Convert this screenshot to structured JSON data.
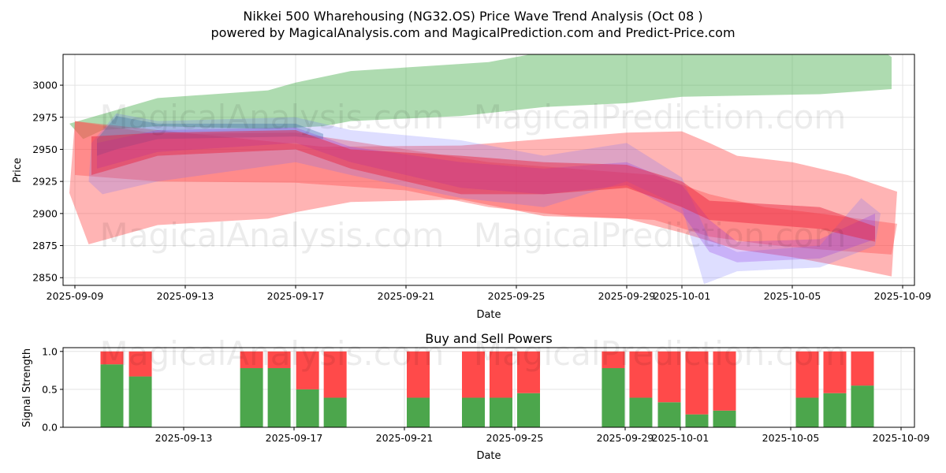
{
  "title_line1": "Nikkei 500 Wharehousing (NG32.OS) Price Wave Trend Analysis (Oct 08 )",
  "title_line2": "powered by MagicalAnalysis.com and MagicalPrediction.com and Predict-Price.com",
  "watermarks": [
    "MagicalAnalysis.com",
    "MagicalPrediction.com"
  ],
  "chart_data": [
    {
      "type": "area",
      "title": "",
      "xlabel": "Date",
      "ylabel": "Price",
      "x_origin_date": "2025-09-09",
      "x_unit": "days since 2025-09-09",
      "xlim": [
        -0.5,
        30.4
      ],
      "ylim": [
        2844,
        3024
      ],
      "x_ticks": [
        "2025-09-09",
        "2025-09-13",
        "2025-09-17",
        "2025-09-21",
        "2025-09-25",
        "2025-09-29",
        "2025-10-01",
        "2025-10-05",
        "2025-10-09"
      ],
      "x_tick_days": [
        0,
        4,
        8,
        12,
        16,
        20,
        22,
        26,
        30
      ],
      "y_ticks": [
        2850,
        2875,
        2900,
        2925,
        2950,
        2975,
        3000
      ],
      "grid": true,
      "bands": [
        {
          "name": "green-band",
          "color": "#4caf50",
          "opacity": 0.45,
          "upper": [
            [
              -0.2,
              2970
            ],
            [
              3,
              2990
            ],
            [
              7,
              2996
            ],
            [
              8,
              3002
            ],
            [
              10,
              3011
            ],
            [
              15,
              3018
            ],
            [
              17,
              3026
            ],
            [
              22,
              3030
            ],
            [
              29,
              3030
            ],
            [
              29.6,
              3022
            ]
          ],
          "lower": [
            [
              -0.2,
              2970
            ],
            [
              0.3,
              2958
            ],
            [
              1,
              2965
            ],
            [
              3,
              2968
            ],
            [
              7,
              2966
            ],
            [
              9,
              2968
            ],
            [
              10,
              2972
            ],
            [
              14,
              2976
            ],
            [
              17,
              2983
            ],
            [
              20,
              2986
            ],
            [
              22,
              2991
            ],
            [
              27,
              2993
            ],
            [
              29.6,
              2997
            ]
          ]
        },
        {
          "name": "red-wide-band",
          "color": "#ff4d4d",
          "opacity": 0.42,
          "upper": [
            [
              0,
              2972
            ],
            [
              3,
              2965
            ],
            [
              9,
              2952
            ],
            [
              14,
              2953
            ],
            [
              17,
              2958
            ],
            [
              20,
              2963
            ],
            [
              22,
              2964
            ],
            [
              23,
              2955
            ],
            [
              24,
              2945
            ],
            [
              26,
              2940
            ],
            [
              28,
              2930
            ],
            [
              29.8,
              2917
            ]
          ],
          "lower": [
            [
              -0.2,
              2916
            ],
            [
              0.5,
              2876
            ],
            [
              3,
              2891
            ],
            [
              7,
              2896
            ],
            [
              8,
              2901
            ],
            [
              10,
              2909
            ],
            [
              14,
              2911
            ],
            [
              17,
              2898
            ],
            [
              20,
              2896
            ],
            [
              22,
              2885
            ],
            [
              24,
              2872
            ],
            [
              26,
              2866
            ],
            [
              28,
              2858
            ],
            [
              29.6,
              2851
            ]
          ]
        },
        {
          "name": "red-band-2",
          "color": "#ff4d4d",
          "opacity": 0.4,
          "upper": [
            [
              0,
              2972
            ],
            [
              3,
              2962
            ],
            [
              8,
              2963
            ],
            [
              12,
              2950
            ],
            [
              15,
              2940
            ],
            [
              18,
              2935
            ],
            [
              21,
              2930
            ],
            [
              23,
              2915
            ],
            [
              25,
              2905
            ],
            [
              27,
              2900
            ],
            [
              29.8,
              2892
            ]
          ],
          "lower": [
            [
              0,
              2930
            ],
            [
              3,
              2925
            ],
            [
              8,
              2924
            ],
            [
              12,
              2918
            ],
            [
              15,
              2905
            ],
            [
              18,
              2898
            ],
            [
              21,
              2895
            ],
            [
              23,
              2882
            ],
            [
              25,
              2876
            ],
            [
              27,
              2872
            ],
            [
              29.6,
              2868
            ]
          ]
        },
        {
          "name": "blue-band",
          "color": "#6b6bff",
          "opacity": 0.22,
          "upper": [
            [
              0.6,
              2955
            ],
            [
              1.5,
              2978
            ],
            [
              3,
              2972
            ],
            [
              8,
              2975
            ],
            [
              10,
              2965
            ],
            [
              14,
              2957
            ],
            [
              17,
              2945
            ],
            [
              20,
              2955
            ],
            [
              22,
              2928
            ],
            [
              23,
              2880
            ],
            [
              24,
              2870
            ],
            [
              27,
              2875
            ],
            [
              28.5,
              2912
            ],
            [
              29.2,
              2900
            ]
          ],
          "lower": [
            [
              0.5,
              2925
            ],
            [
              1,
              2915
            ],
            [
              3,
              2925
            ],
            [
              8,
              2940
            ],
            [
              10,
              2930
            ],
            [
              14,
              2912
            ],
            [
              17,
              2905
            ],
            [
              20,
              2925
            ],
            [
              22,
              2905
            ],
            [
              22.8,
              2845
            ],
            [
              24,
              2855
            ],
            [
              27,
              2858
            ],
            [
              29,
              2875
            ]
          ]
        },
        {
          "name": "steel-blue-band",
          "color": "#3a6ea5",
          "opacity": 0.35,
          "upper": [
            [
              0.8,
              2958
            ],
            [
              1.5,
              2976
            ],
            [
              3,
              2970
            ],
            [
              8,
              2970
            ],
            [
              9,
              2962
            ]
          ],
          "lower": [
            [
              0.8,
              2945
            ],
            [
              1.5,
              2950
            ],
            [
              3,
              2958
            ],
            [
              8,
              2960
            ],
            [
              9,
              2958
            ]
          ]
        },
        {
          "name": "purple-band",
          "color": "#8a2be2",
          "opacity": 0.25,
          "upper": [
            [
              0.8,
              2955
            ],
            [
              3,
              2965
            ],
            [
              8,
              2967
            ],
            [
              10,
              2952
            ],
            [
              14,
              2940
            ],
            [
              17,
              2935
            ],
            [
              20,
              2940
            ],
            [
              22,
              2922
            ],
            [
              23,
              2895
            ],
            [
              24,
              2878
            ],
            [
              27,
              2880
            ],
            [
              29,
              2900
            ]
          ],
          "lower": [
            [
              0.8,
              2935
            ],
            [
              3,
              2948
            ],
            [
              8,
              2955
            ],
            [
              10,
              2940
            ],
            [
              14,
              2920
            ],
            [
              17,
              2915
            ],
            [
              20,
              2922
            ],
            [
              22,
              2900
            ],
            [
              23,
              2870
            ],
            [
              24,
              2862
            ],
            [
              27,
              2865
            ],
            [
              29,
              2880
            ]
          ]
        },
        {
          "name": "red-center-band",
          "color": "#e8203a",
          "opacity": 0.45,
          "upper": [
            [
              0.6,
              2960
            ],
            [
              3,
              2963
            ],
            [
              8,
              2965
            ],
            [
              10,
              2950
            ],
            [
              14,
              2945
            ],
            [
              17,
              2940
            ],
            [
              20,
              2938
            ],
            [
              22,
              2925
            ],
            [
              23,
              2910
            ],
            [
              27,
              2905
            ],
            [
              29,
              2890
            ]
          ],
          "lower": [
            [
              0.6,
              2930
            ],
            [
              3,
              2945
            ],
            [
              8,
              2950
            ],
            [
              10,
              2935
            ],
            [
              14,
              2915
            ],
            [
              17,
              2915
            ],
            [
              20,
              2920
            ],
            [
              22,
              2905
            ],
            [
              23,
              2895
            ],
            [
              27,
              2888
            ],
            [
              29,
              2878
            ]
          ]
        }
      ]
    },
    {
      "type": "bar",
      "title": "Buy and Sell Powers",
      "xlabel": "Date",
      "ylabel": "Signal Strength",
      "ylim": [
        0,
        1.05
      ],
      "y_ticks": [
        "0.0",
        "0.5",
        "1.0"
      ],
      "x_ticks": [
        "2025-09-13",
        "2025-09-17",
        "2025-09-21",
        "2025-09-25",
        "2025-09-29",
        "2025-10-01",
        "2025-10-05",
        "2025-10-09"
      ],
      "x_tick_days": [
        4,
        8,
        12,
        16,
        20,
        22,
        26,
        30
      ],
      "categories": [
        "2025-09-10",
        "2025-09-11",
        "2025-09-15",
        "2025-09-16",
        "2025-09-17",
        "2025-09-18",
        "2025-09-21",
        "2025-09-23",
        "2025-09-24",
        "2025-09-25",
        "2025-09-28",
        "2025-09-29",
        "2025-09-30",
        "2025-10-01",
        "2025-10-02",
        "2025-10-05",
        "2025-10-06",
        "2025-10-07"
      ],
      "bar_days": [
        1.4,
        2.43,
        6.46,
        7.46,
        8.49,
        9.49,
        12.5,
        14.5,
        15.5,
        16.5,
        19.57,
        20.57,
        21.6,
        22.6,
        23.6,
        26.6,
        27.6,
        28.6
      ],
      "series": [
        {
          "name": "Buy",
          "color": "#4ca64c",
          "values": [
            0.83,
            0.67,
            0.78,
            0.78,
            0.5,
            0.39,
            0.39,
            0.39,
            0.39,
            0.45,
            0.78,
            0.39,
            0.33,
            0.17,
            0.22,
            0.39,
            0.45,
            0.55
          ]
        },
        {
          "name": "Sell",
          "color": "#ff4a4a",
          "values": [
            0.17,
            0.33,
            0.22,
            0.22,
            0.5,
            0.61,
            0.61,
            0.61,
            0.61,
            0.55,
            0.22,
            0.61,
            0.67,
            0.83,
            0.78,
            0.61,
            0.55,
            0.45
          ]
        }
      ]
    }
  ]
}
